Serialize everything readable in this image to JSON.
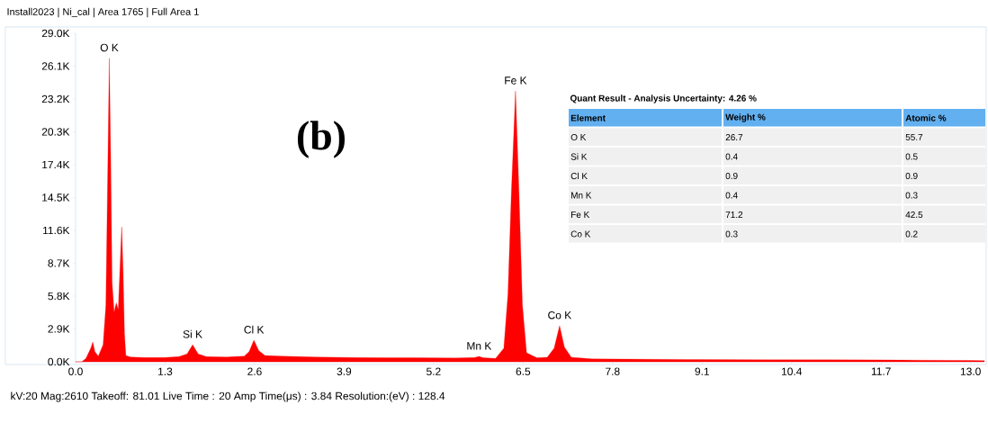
{
  "chart_data": {
    "type": "area",
    "title": "Install2023 | Ni_cal | Area 1765 | Full Area 1",
    "x": [
      0.0,
      0.09,
      0.15,
      0.22,
      0.25,
      0.28,
      0.33,
      0.4,
      0.44,
      0.47,
      0.49,
      0.51,
      0.53,
      0.56,
      0.59,
      0.62,
      0.65,
      0.67,
      0.69,
      0.71,
      0.73,
      0.8,
      1.0,
      1.3,
      1.5,
      1.62,
      1.7,
      1.78,
      1.9,
      2.2,
      2.45,
      2.52,
      2.59,
      2.66,
      2.75,
      3.0,
      3.5,
      4.0,
      4.5,
      5.0,
      5.5,
      5.8,
      5.86,
      5.92,
      6.1,
      6.22,
      6.28,
      6.33,
      6.39,
      6.44,
      6.49,
      6.55,
      6.7,
      6.85,
      6.95,
      7.03,
      7.1,
      7.2,
      7.5,
      8.0,
      9.0,
      10.0,
      11.0,
      12.0,
      13.0,
      13.2
    ],
    "values": [
      0,
      0,
      300,
      1200,
      1750,
      900,
      500,
      1500,
      5000,
      18000,
      26800,
      18000,
      7000,
      4370,
      5200,
      4600,
      9000,
      11900,
      8000,
      2500,
      550,
      420,
      380,
      380,
      450,
      700,
      1500,
      700,
      450,
      420,
      500,
      900,
      1900,
      1000,
      550,
      500,
      420,
      380,
      360,
      350,
      330,
      380,
      480,
      350,
      300,
      1200,
      6000,
      15000,
      23900,
      15000,
      5000,
      800,
      350,
      400,
      1200,
      3180,
      1300,
      400,
      250,
      230,
      200,
      180,
      170,
      150,
      120,
      100
    ],
    "color": "#ff0000",
    "xlim": [
      0,
      13.2
    ],
    "xticks": [
      {
        "value": 0,
        "label": "0.0"
      },
      {
        "value": 1.3,
        "label": "1.3"
      },
      {
        "value": 2.6,
        "label": "2.6"
      },
      {
        "value": 3.9,
        "label": "3.9"
      },
      {
        "value": 5.2,
        "label": "5.2"
      },
      {
        "value": 6.5,
        "label": "6.5"
      },
      {
        "value": 7.8,
        "label": "7.8"
      },
      {
        "value": 9.1,
        "label": "9.1"
      },
      {
        "value": 10.4,
        "label": "10.4"
      },
      {
        "value": 11.7,
        "label": "11.7"
      },
      {
        "value": 13.0,
        "label": "13.0"
      }
    ],
    "ylim": [
      0,
      29000
    ],
    "yticks": [
      {
        "value": 0,
        "label": "0.0K"
      },
      {
        "value": 2900,
        "label": "2.9K"
      },
      {
        "value": 5800,
        "label": "5.8K"
      },
      {
        "value": 8700,
        "label": "8.7K"
      },
      {
        "value": 11600,
        "label": "11.6K"
      },
      {
        "value": 14500,
        "label": "14.5K"
      },
      {
        "value": 17400,
        "label": "17.4K"
      },
      {
        "value": 20300,
        "label": "20.3K"
      },
      {
        "value": 23200,
        "label": "23.2K"
      },
      {
        "value": 26100,
        "label": "26.1K"
      },
      {
        "value": 29000,
        "label": "29.0K"
      }
    ],
    "annotations": [
      {
        "text": "O  K",
        "x": 0.49,
        "y": 26800
      },
      {
        "text": "Si K",
        "x": 1.7,
        "y": 1500
      },
      {
        "text": "Cl K",
        "x": 2.59,
        "y": 1900
      },
      {
        "text": "Mn K",
        "x": 5.86,
        "y": 480
      },
      {
        "text": "Fe K",
        "x": 6.39,
        "y": 23900
      },
      {
        "text": "Co K",
        "x": 7.03,
        "y": 3180
      },
      "(b)",
      "kV:20     Mag:2610     Takeoff: 81.01     Live Time : 20     Amp Time(μs) : 3.84     Resolution:(eV) : 128.4",
      "Quant Result - Analysis Uncertainty: 4.26 %",
      "Element",
      "Weight %",
      "Atomic %",
      "O K",
      "26.7",
      "55.7",
      "Si K",
      "0.4",
      "0.5",
      "Cl K",
      "0.9",
      "0.9",
      "Mn K",
      "0.4",
      "0.3",
      "Fe K",
      "71.2",
      "42.5",
      "Co K",
      "0.3",
      "0.2"
    ]
  }
}
